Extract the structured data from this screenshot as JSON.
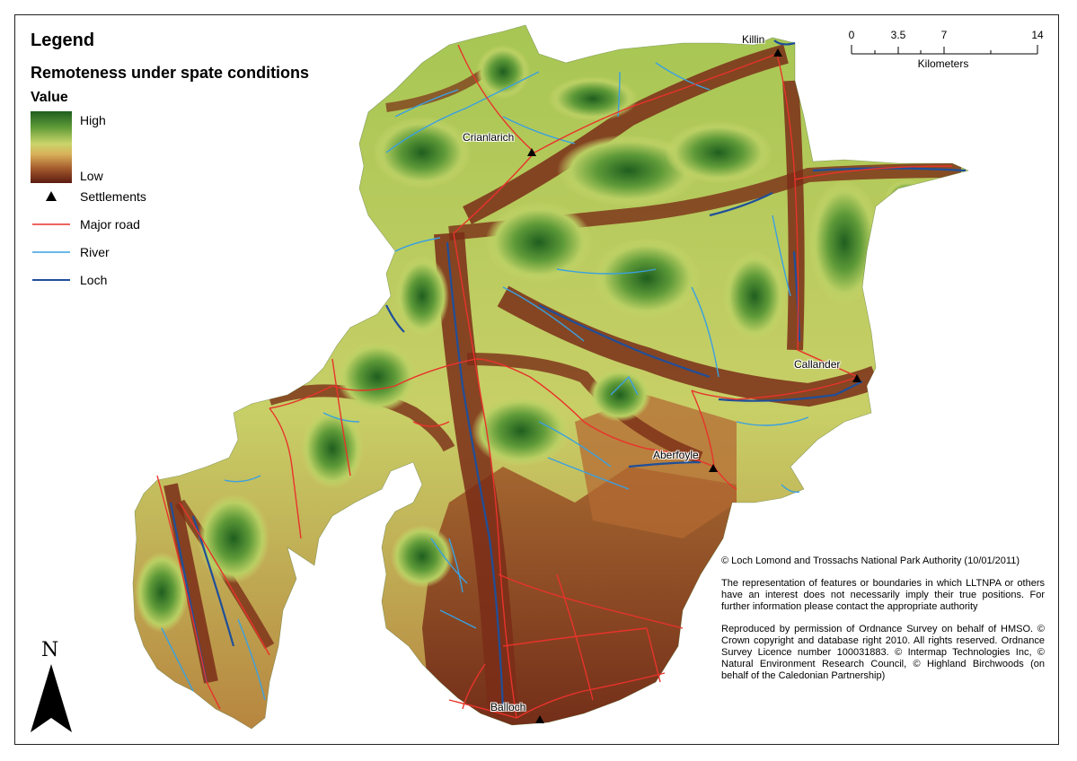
{
  "legend": {
    "title": "Legend",
    "subtitle": "Remoteness under spate conditions",
    "value_heading": "Value",
    "ramp_high": "High",
    "ramp_low": "Low",
    "items": [
      {
        "label": "Settlements",
        "symbol": "triangle-icon",
        "color": "#000000"
      },
      {
        "label": "Major road",
        "symbol": "line",
        "color": "#e8332b"
      },
      {
        "label": "River",
        "symbol": "line",
        "color": "#3aa0e0"
      },
      {
        "label": "Loch",
        "symbol": "line",
        "color": "#1f4f9a"
      }
    ]
  },
  "scale_bar": {
    "ticks": [
      "0",
      "3.5",
      "7",
      "14"
    ],
    "units": "Kilometers"
  },
  "settlements": [
    "Killin",
    "Crianlarich",
    "Callander",
    "Aberfoyle",
    "Balloch"
  ],
  "north_arrow": "N",
  "attribution": [
    "© Loch Lomond and Trossachs National Park Authority (10/01/2011)",
    "The representation of features or boundaries in which LLTNPA or others have an interest does not necessarily imply their true positions. For further information please contact the appropriate authority",
    "Reproduced by permission of Ordnance Survey on behalf of HMSO. © Crown copyright and database right 2010. All rights reserved. Ordnance Survey Licence number 100031883. © Intermap Technologies Inc, © Natural Environment Research Council, © Highland Birchwoods (on behalf of the Caledonian Partnership)"
  ],
  "colors": {
    "high": "#1f5e1f",
    "mid": "#c9d56a",
    "low": "#5c1b10",
    "road": "#e8332b",
    "river": "#3aa0e0",
    "loch": "#1f4f9a"
  }
}
